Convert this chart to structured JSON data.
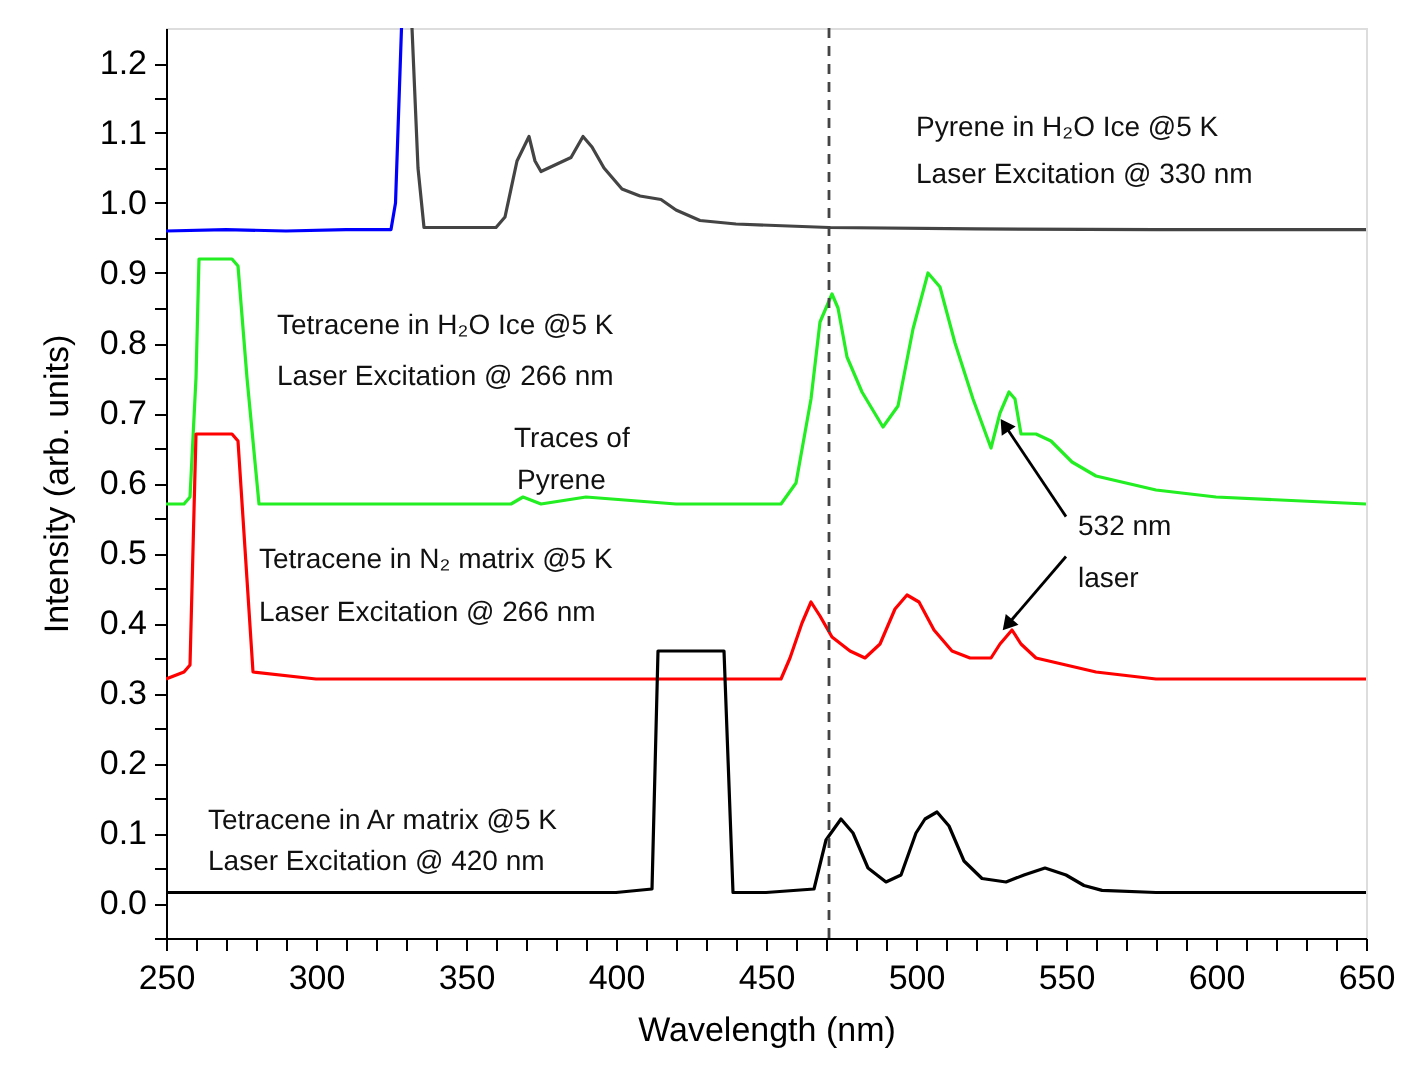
{
  "chart_data": {
    "type": "line",
    "xlabel": "Wavelength (nm)",
    "ylabel": "Intensity (arb. units)",
    "xlim": [
      250,
      650
    ],
    "ylim": [
      -0.05,
      1.25
    ],
    "xticks": [
      250,
      {
        "value": 260,
        "label": null
      },
      {
        "value": 270,
        "label": null
      },
      {
        "value": 280,
        "label": null
      },
      {
        "value": 290,
        "label": null
      },
      300,
      {
        "value": 310,
        "label": null
      },
      {
        "value": 320,
        "label": null
      },
      {
        "value": 330,
        "label": null
      },
      {
        "value": 340,
        "label": null
      },
      350,
      {
        "value": 360,
        "label": null
      },
      {
        "value": 370,
        "label": null
      },
      {
        "value": 380,
        "label": null
      },
      {
        "value": 390,
        "label": null
      },
      400,
      {
        "value": 410,
        "label": null
      },
      {
        "value": 420,
        "label": null
      },
      {
        "value": 430,
        "label": null
      },
      {
        "value": 440,
        "label": null
      },
      450,
      {
        "value": 460,
        "label": null
      },
      {
        "value": 470,
        "label": null
      },
      {
        "value": 480,
        "label": null
      },
      {
        "value": 490,
        "label": null
      },
      500,
      {
        "value": 510,
        "label": null
      },
      {
        "value": 520,
        "label": null
      },
      {
        "value": 530,
        "label": null
      },
      {
        "value": 540,
        "label": null
      },
      550,
      {
        "value": 560,
        "label": null
      },
      {
        "value": 570,
        "label": null
      },
      {
        "value": 580,
        "label": null
      },
      {
        "value": 590,
        "label": null
      },
      600,
      {
        "value": 610,
        "label": null
      },
      {
        "value": 620,
        "label": null
      },
      {
        "value": 630,
        "label": null
      },
      {
        "value": 640,
        "label": null
      },
      650
    ],
    "yticks": [
      {
        "value": -0.05,
        "label": null
      },
      {
        "value": 0,
        "label": "0.0"
      },
      {
        "value": 0.05,
        "label": null
      },
      0.1,
      {
        "value": 0.15,
        "label": null
      },
      0.2,
      {
        "value": 0.25,
        "label": null
      },
      0.3,
      {
        "value": 0.35,
        "label": null
      },
      0.4,
      {
        "value": 0.45,
        "label": null
      },
      0.5,
      {
        "value": 0.55,
        "label": null
      },
      0.6,
      {
        "value": 0.65,
        "label": null
      },
      0.7,
      {
        "value": 0.75,
        "label": null
      },
      0.8,
      {
        "value": 0.85,
        "label": null
      },
      0.9,
      {
        "value": 0.95,
        "label": null
      },
      {
        "value": 1,
        "label": "1.0"
      },
      {
        "value": 1.05,
        "label": null
      },
      1.1,
      {
        "value": 1.15,
        "label": null
      },
      1.2
    ],
    "grid": false,
    "marker": "none",
    "line_style": "solid",
    "series": [
      {
        "color": "#0000ff",
        "x": [
          250,
          270,
          290,
          310,
          325,
          326.5,
          328.5
        ],
        "values": [
          0.96,
          0.962,
          0.96,
          0.962,
          0.962,
          1.0,
          1.25
        ]
      },
      {
        "color": "#444444",
        "x": [
          332,
          334,
          336,
          345,
          360,
          363,
          367,
          371,
          373,
          375,
          380,
          385,
          389,
          392,
          396,
          402,
          408,
          415,
          420,
          428,
          440,
          471,
          520,
          580,
          650
        ],
        "values": [
          1.25,
          1.05,
          0.965,
          0.965,
          0.965,
          0.98,
          1.06,
          1.095,
          1.06,
          1.045,
          1.055,
          1.065,
          1.095,
          1.08,
          1.05,
          1.02,
          1.01,
          1.005,
          0.99,
          0.975,
          0.97,
          0.965,
          0.963,
          0.962,
          0.962
        ]
      },
      {
        "color": "#22ee22",
        "x": [
          250,
          256,
          258,
          260,
          261,
          272,
          274,
          277,
          281,
          300,
          360,
          365,
          369,
          375,
          390,
          420,
          455,
          460,
          465,
          468,
          472,
          474,
          477,
          482,
          489,
          494,
          499,
          504,
          508,
          513,
          519,
          525,
          528,
          531,
          533,
          535,
          540,
          545,
          552,
          560,
          570,
          580,
          600,
          650
        ],
        "values": [
          0.57,
          0.57,
          0.58,
          0.75,
          0.92,
          0.92,
          0.91,
          0.75,
          0.57,
          0.57,
          0.57,
          0.57,
          0.58,
          0.57,
          0.58,
          0.57,
          0.57,
          0.6,
          0.72,
          0.83,
          0.87,
          0.85,
          0.78,
          0.73,
          0.68,
          0.71,
          0.82,
          0.9,
          0.88,
          0.8,
          0.72,
          0.65,
          0.7,
          0.73,
          0.72,
          0.67,
          0.67,
          0.66,
          0.63,
          0.61,
          0.6,
          0.59,
          0.58,
          0.57
        ]
      },
      {
        "color": "#ff0000",
        "x": [
          250,
          256,
          258,
          260,
          272,
          274,
          279,
          300,
          400,
          455,
          458,
          462,
          465,
          468,
          472,
          478,
          483,
          488,
          493,
          497,
          501,
          506,
          512,
          518,
          522,
          525,
          528,
          532,
          535,
          540,
          550,
          560,
          580,
          600,
          650
        ],
        "values": [
          0.32,
          0.33,
          0.34,
          0.67,
          0.67,
          0.66,
          0.33,
          0.32,
          0.32,
          0.32,
          0.35,
          0.4,
          0.43,
          0.41,
          0.38,
          0.36,
          0.35,
          0.37,
          0.42,
          0.44,
          0.43,
          0.39,
          0.36,
          0.35,
          0.35,
          0.35,
          0.37,
          0.39,
          0.37,
          0.35,
          0.34,
          0.33,
          0.32,
          0.32,
          0.32
        ]
      },
      {
        "color": "#000000",
        "x": [
          250,
          300,
          350,
          400,
          412,
          414,
          436,
          439,
          450,
          466,
          470,
          475,
          479,
          484,
          490,
          495,
          500,
          503,
          507,
          511,
          516,
          522,
          530,
          536,
          543,
          550,
          556,
          562,
          580,
          600,
          650
        ],
        "values": [
          0.015,
          0.015,
          0.015,
          0.015,
          0.02,
          0.36,
          0.36,
          0.015,
          0.015,
          0.02,
          0.09,
          0.12,
          0.1,
          0.05,
          0.03,
          0.04,
          0.1,
          0.12,
          0.13,
          0.11,
          0.06,
          0.035,
          0.03,
          0.04,
          0.05,
          0.04,
          0.025,
          0.018,
          0.015,
          0.015,
          0.015
        ]
      }
    ],
    "ref_lines": [
      {
        "axis": "x",
        "value": 471,
        "color": "#444444",
        "line_style": "dashed"
      }
    ],
    "annotations": [
      "Pyrene in H₂O Ice @5 K",
      "Laser Excitation @ 330 nm",
      "Tetracene in H₂O Ice @5 K",
      "Laser Excitation @ 266 nm",
      "Traces of",
      "Pyrene",
      "Tetracene in N₂ matrix @5 K",
      "Laser Excitation @ 266 nm",
      "Tetracene in Ar matrix @5 K",
      "Laser Excitation @ 420 nm",
      {
        "text": "532 nm",
        "x": 530,
        "y": 0.68
      },
      {
        "text": "laser",
        "x": 531,
        "y": 0.4
      }
    ]
  }
}
